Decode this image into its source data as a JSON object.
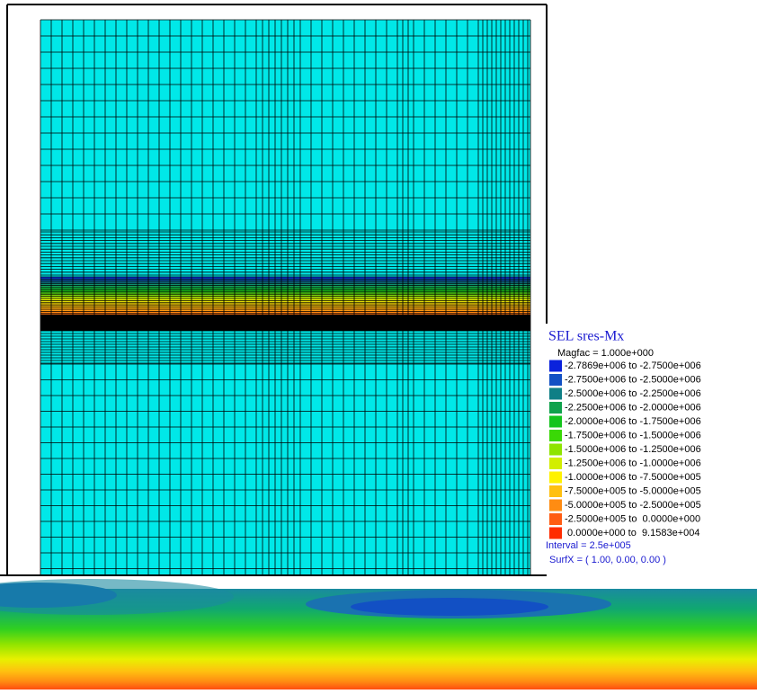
{
  "legend": {
    "title": "SEL sres-Mx",
    "magfac": "Magfac =  1.000e+000",
    "entries": [
      {
        "label": "-2.7869e+006 to -2.7500e+006",
        "color": "#0b22dc"
      },
      {
        "label": "-2.7500e+006 to -2.5000e+006",
        "color": "#1250c4"
      },
      {
        "label": "-2.5000e+006 to -2.2500e+006",
        "color": "#0f7f86"
      },
      {
        "label": "-2.2500e+006 to -2.0000e+006",
        "color": "#10a24c"
      },
      {
        "label": "-2.0000e+006 to -1.7500e+006",
        "color": "#14c41c"
      },
      {
        "label": "-1.7500e+006 to -1.5000e+006",
        "color": "#3ad806"
      },
      {
        "label": "-1.5000e+006 to -1.2500e+006",
        "color": "#8ee400"
      },
      {
        "label": "-1.2500e+006 to -1.0000e+006",
        "color": "#d2ee00"
      },
      {
        "label": "-1.0000e+006 to -7.5000e+005",
        "color": "#fff200"
      },
      {
        "label": "-7.5000e+005 to -5.0000e+005",
        "color": "#ffc010"
      },
      {
        "label": "-5.0000e+005 to -2.5000e+005",
        "color": "#ff8c12"
      },
      {
        "label": "-2.5000e+005 to  0.0000e+000",
        "color": "#ff5c12"
      },
      {
        "label": " 0.0000e+000 to  9.1583e+004",
        "color": "#ff2c00"
      }
    ],
    "interval": "Interval = 2.5e+005",
    "surfx": "SurfX = ( 1.00,  0.00,  0.00 )"
  }
}
